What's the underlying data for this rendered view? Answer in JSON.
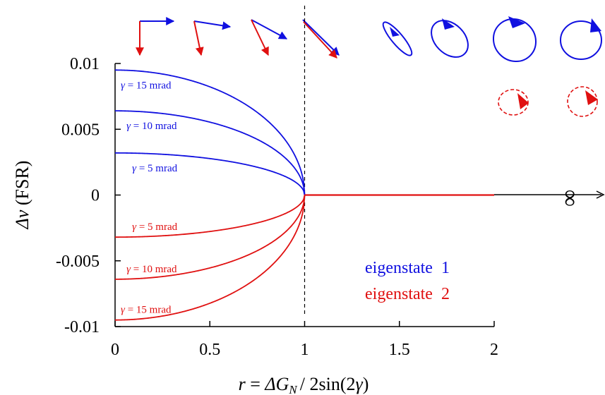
{
  "chart_data": {
    "type": "line",
    "title": "",
    "xlabel": {
      "r": "r",
      "eq": " = ",
      "delta": "Δ",
      "G": "G",
      "sub": "N",
      "rest": "/ 2sin(2",
      "gamma": "γ",
      "close": ")"
    },
    "ylabel": {
      "delta": "Δ",
      "nu": "ν",
      "unit": " (FSR)"
    },
    "xlim": [
      0,
      2
    ],
    "ylim": [
      -0.01,
      0.01
    ],
    "x_ticks": [
      "0",
      "0.5",
      "1",
      "1.5",
      "2"
    ],
    "y_ticks": [
      "0.01",
      "0.005",
      "0",
      "-0.005",
      "-0.01"
    ],
    "infinity_label": "∞",
    "vertical_dashed_line_x": 1,
    "colors": {
      "eigenstate1": "#1010e0",
      "eigenstate2": "#e01010"
    },
    "series": [
      {
        "gamma_mrad": 15,
        "eigenstate": 1,
        "y0": 0.0095,
        "label_gamma": "γ",
        "label_text": " = 15 mrad"
      },
      {
        "gamma_mrad": 10,
        "eigenstate": 1,
        "y0": 0.0064,
        "label_gamma": "γ",
        "label_text": " = 10 mrad"
      },
      {
        "gamma_mrad": 5,
        "eigenstate": 1,
        "y0": 0.0032,
        "label_gamma": "γ",
        "label_text": " = 5 mrad"
      },
      {
        "gamma_mrad": 5,
        "eigenstate": 2,
        "y0": -0.0032,
        "label_gamma": "γ",
        "label_text": " = 5 mrad"
      },
      {
        "gamma_mrad": 10,
        "eigenstate": 2,
        "y0": -0.0064,
        "label_gamma": "γ",
        "label_text": " = 10 mrad"
      },
      {
        "gamma_mrad": 15,
        "eigenstate": 2,
        "y0": -0.0095,
        "label_gamma": "γ",
        "label_text": " = 15 mrad"
      }
    ],
    "zero_line_range": [
      1,
      2
    ],
    "legend": [
      {
        "text": "eigenstate  1",
        "color": "#1010e0"
      },
      {
        "text": "eigenstate  2",
        "color": "#e01010"
      }
    ]
  }
}
